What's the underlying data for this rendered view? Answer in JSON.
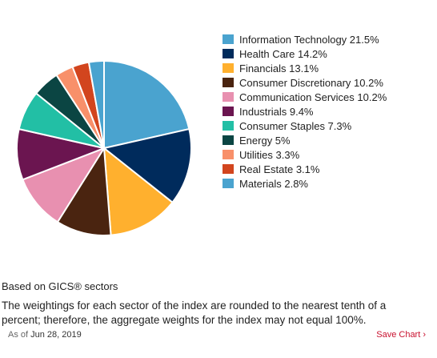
{
  "chart_data": {
    "type": "pie",
    "title": "",
    "categories": [
      "Information Technology",
      "Health Care",
      "Financials",
      "Consumer Discretionary",
      "Communication Services",
      "Industrials",
      "Consumer Staples",
      "Energy",
      "Utilities",
      "Real Estate",
      "Materials"
    ],
    "values": [
      21.5,
      14.2,
      13.1,
      10.2,
      10.2,
      9.4,
      7.3,
      5,
      3.3,
      3.1,
      2.8
    ],
    "colors": [
      "#4aa3cf",
      "#002b5c",
      "#ffb02e",
      "#4a2410",
      "#e890b0",
      "#6b1550",
      "#22bfa5",
      "#0b4543",
      "#f8906a",
      "#d2451e",
      "#4aa3cf"
    ],
    "legend_position": "right",
    "legend_labels": [
      "Information Technology 21.5%",
      "Health Care 14.2%",
      "Financials 13.1%",
      "Consumer Discretionary 10.2%",
      "Communication Services 10.2%",
      "Industrials 9.4%",
      "Consumer Staples 7.3%",
      "Energy 5%",
      "Utilities 3.3%",
      "Real Estate 3.1%",
      "Materials 2.8%"
    ]
  },
  "footer": {
    "basis": "Based on GICS® sectors",
    "note": "The weightings for each sector of the index are rounded to the nearest tenth of a percent; therefore, the aggregate weights for the index may not equal 100%.",
    "as_of_label": "As of",
    "as_of_date": "Jun 28, 2019",
    "save_chart": "Save Chart ›"
  }
}
